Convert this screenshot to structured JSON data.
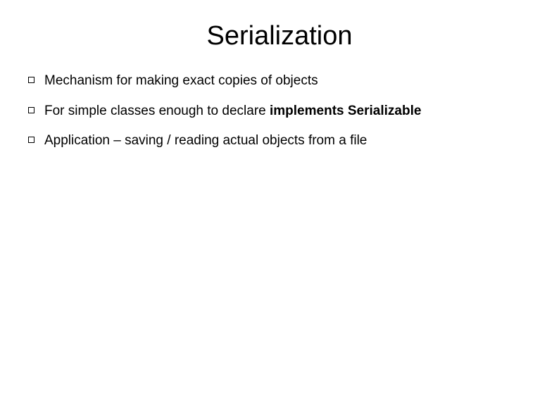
{
  "slide": {
    "title": "Serialization",
    "title_fontsize": 38,
    "title_color": "#000000",
    "background_color": "#ffffff",
    "bullets": [
      {
        "text": "Mechanism for making exact copies of objects",
        "bold_part": null
      },
      {
        "text": "For simple classes enough to declare ",
        "bold_part": "implements Serializable"
      },
      {
        "text": "Application – saving / reading actual objects from a file",
        "bold_part": null
      }
    ],
    "bullet_fontsize": 19,
    "bullet_marker_size": 9,
    "bullet_marker_color": "#000000"
  }
}
